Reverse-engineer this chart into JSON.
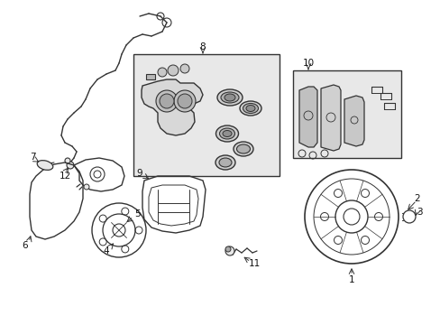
{
  "bg_color": "#ffffff",
  "fig_width": 4.89,
  "fig_height": 3.6,
  "dpi": 100,
  "line_color": "#333333",
  "text_color": "#111111",
  "gray_fill": "#e8e8e8",
  "light_fill": "#f0f0f0",
  "dark_fill": "#aaaaaa"
}
